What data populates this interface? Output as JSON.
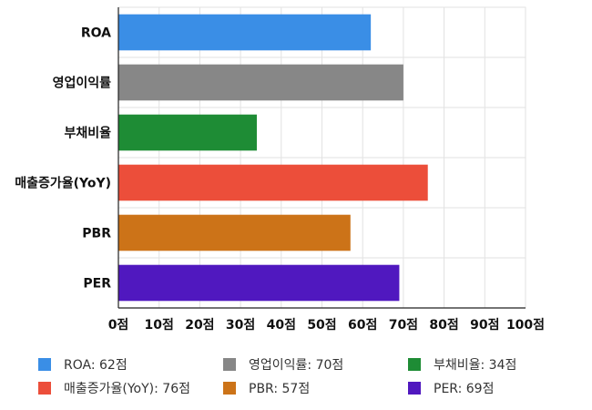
{
  "chart_data": {
    "type": "bar",
    "orientation": "horizontal",
    "categories": [
      "ROA",
      "영업이익률",
      "부채비율",
      "매출증가율(YoY)",
      "PBR",
      "PER"
    ],
    "values": [
      62,
      70,
      34,
      76,
      57,
      69
    ],
    "colors": [
      "#3a8ee6",
      "#878787",
      "#1e8c35",
      "#ec4e3a",
      "#cc7318",
      "#5018bf"
    ],
    "xlim": [
      0,
      100
    ],
    "xticks": [
      0,
      10,
      20,
      30,
      40,
      50,
      60,
      70,
      80,
      90,
      100
    ],
    "tick_suffix": "점",
    "grid": true,
    "legend_position": "bottom",
    "legend": [
      {
        "label": "ROA: 62점",
        "color": "#3a8ee6"
      },
      {
        "label": "영업이익률: 70점",
        "color": "#878787"
      },
      {
        "label": "부채비율: 34점",
        "color": "#1e8c35"
      },
      {
        "label": "매출증가율(YoY): 76점",
        "color": "#ec4e3a"
      },
      {
        "label": "PBR: 57점",
        "color": "#cc7318"
      },
      {
        "label": "PER: 69점",
        "color": "#5018bf"
      }
    ]
  }
}
